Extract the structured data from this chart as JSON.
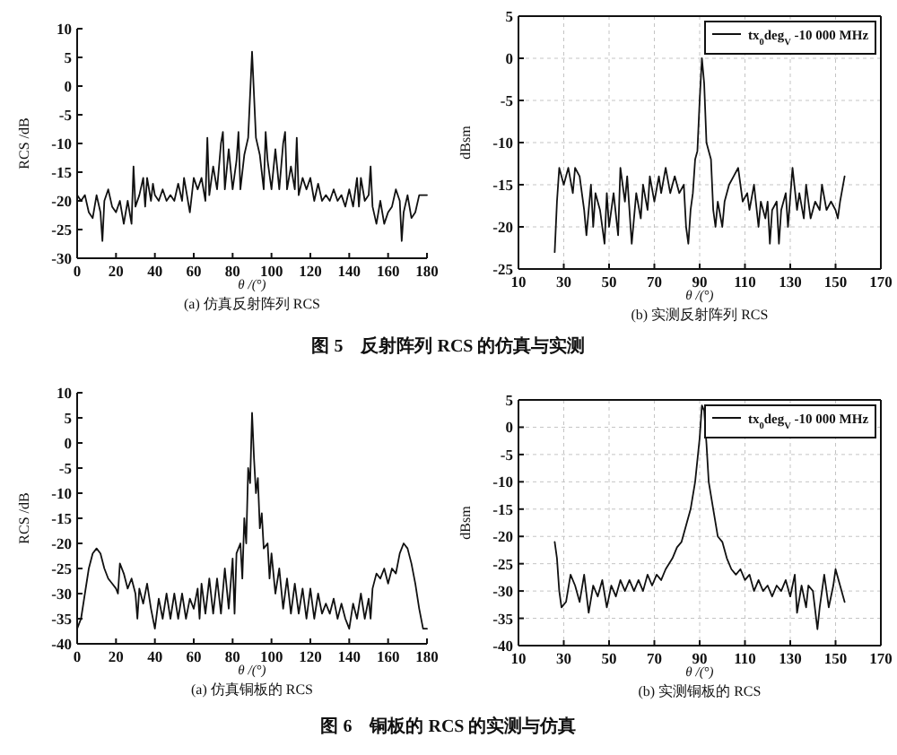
{
  "chart_data": [
    {
      "type": "line",
      "title": "(a) 仿真反射阵列 RCS",
      "xlabel": "θ /(°)",
      "ylabel": "RCS /dB",
      "xlim": [
        0,
        180
      ],
      "xticks": [
        0,
        20,
        40,
        60,
        80,
        100,
        120,
        140,
        160,
        180
      ],
      "ylim": [
        -30,
        10
      ],
      "yticks": [
        -30,
        -25,
        -20,
        -15,
        -10,
        -5,
        0,
        5,
        10
      ],
      "grid": false,
      "legend": false,
      "x": [
        0,
        2,
        4,
        6,
        8,
        10,
        12,
        13,
        14,
        16,
        18,
        20,
        22,
        24,
        26,
        28,
        29,
        30,
        32,
        34,
        35,
        36,
        38,
        39,
        40,
        42,
        44,
        46,
        48,
        50,
        52,
        54,
        55,
        56,
        58,
        60,
        62,
        64,
        66,
        67,
        68,
        70,
        72,
        74,
        75,
        76,
        78,
        80,
        82,
        83,
        84,
        86,
        88,
        90,
        92,
        94,
        96,
        97,
        98,
        100,
        102,
        104,
        106,
        107,
        108,
        110,
        112,
        113,
        114,
        116,
        118,
        120,
        122,
        124,
        126,
        128,
        130,
        132,
        134,
        136,
        138,
        140,
        142,
        144,
        145,
        146,
        148,
        150,
        151,
        152,
        154,
        156,
        158,
        160,
        162,
        164,
        166,
        167,
        168,
        170,
        172,
        174,
        176,
        178,
        180
      ],
      "series": [
        {
          "color": "#111111",
          "values": [
            -19,
            -20,
            -19,
            -22,
            -23,
            -19,
            -22,
            -27,
            -20,
            -18,
            -21,
            -22,
            -20,
            -24,
            -20,
            -24,
            -14,
            -21,
            -19,
            -16,
            -21,
            -16,
            -20,
            -17,
            -19,
            -20,
            -18,
            -20,
            -19,
            -20,
            -17,
            -20,
            -16,
            -18,
            -22,
            -16,
            -18,
            -16,
            -20,
            -9,
            -19,
            -14,
            -18,
            -10,
            -8,
            -18,
            -11,
            -18,
            -13,
            -8,
            -18,
            -12,
            -9,
            6,
            -9,
            -12,
            -18,
            -8,
            -13,
            -18,
            -11,
            -18,
            -10,
            -8,
            -18,
            -14,
            -18,
            -9,
            -19,
            -16,
            -18,
            -16,
            -20,
            -17,
            -20,
            -19,
            -20,
            -18,
            -20,
            -19,
            -21,
            -18,
            -21,
            -16,
            -21,
            -16,
            -20,
            -19,
            -14,
            -21,
            -24,
            -20,
            -24,
            -22,
            -21,
            -18,
            -20,
            -27,
            -22,
            -19,
            -23,
            -22,
            -19,
            -19,
            -19
          ]
        }
      ]
    },
    {
      "type": "line",
      "title": "(b) 实测反射阵列 RCS",
      "xlabel": "θ /(°)",
      "ylabel": "dBsm",
      "xlim": [
        10,
        170
      ],
      "xticks": [
        10,
        30,
        50,
        70,
        90,
        110,
        130,
        150,
        170
      ],
      "ylim": [
        -25,
        5
      ],
      "yticks": [
        -25,
        -20,
        -15,
        -10,
        -5,
        0,
        5
      ],
      "grid": true,
      "legend": "top right",
      "annotations": [
        "图 5　反射阵列 RCS 的仿真与实测"
      ],
      "x": [
        26,
        27,
        28,
        30,
        32,
        34,
        35,
        37,
        39,
        40,
        42,
        43,
        44,
        46,
        48,
        49,
        50,
        52,
        54,
        55,
        57,
        58,
        60,
        62,
        64,
        65,
        67,
        68,
        70,
        72,
        73,
        75,
        77,
        79,
        81,
        83,
        84,
        85,
        86,
        87,
        88,
        89,
        90,
        91,
        92,
        93,
        94,
        95,
        96,
        97,
        98,
        100,
        101,
        103,
        105,
        107,
        109,
        111,
        112,
        114,
        116,
        117,
        119,
        120,
        121,
        122,
        124,
        125,
        126,
        128,
        129,
        131,
        133,
        134,
        136,
        137,
        139,
        141,
        143,
        144,
        146,
        148,
        150,
        151,
        152,
        154
      ],
      "series": [
        {
          "name": "tx$_{0}$deg$_{V}$ -10 000 MHz",
          "color": "#111111",
          "values": [
            -23,
            -17,
            -13,
            -15,
            -13,
            -16,
            -13,
            -14,
            -18,
            -21,
            -15,
            -20,
            -16,
            -18,
            -22,
            -16,
            -20,
            -16,
            -21,
            -13,
            -17,
            -14,
            -22,
            -16,
            -19,
            -15,
            -18,
            -14,
            -17,
            -14,
            -16,
            -13,
            -16,
            -14,
            -16,
            -15,
            -20,
            -22,
            -18,
            -16,
            -12,
            -11,
            -5,
            0,
            -3,
            -10,
            -11,
            -12,
            -18,
            -20,
            -17,
            -20,
            -17,
            -15,
            -14,
            -13,
            -17,
            -16,
            -18,
            -15,
            -20,
            -17,
            -19,
            -17,
            -22,
            -18,
            -17,
            -22,
            -18,
            -16,
            -20,
            -13,
            -18,
            -16,
            -19,
            -15,
            -19,
            -17,
            -18,
            -15,
            -18,
            -17,
            -18,
            -19,
            -17,
            -14
          ]
        }
      ]
    },
    {
      "type": "line",
      "title": "(a) 仿真铜板的 RCS",
      "xlabel": "θ /(°)",
      "ylabel": "RCS /dB",
      "xlim": [
        0,
        180
      ],
      "xticks": [
        0,
        20,
        40,
        60,
        80,
        100,
        120,
        140,
        160,
        180
      ],
      "ylim": [
        -40,
        10
      ],
      "yticks": [
        -40,
        -35,
        -30,
        -25,
        -20,
        -15,
        -10,
        -5,
        0,
        5,
        10
      ],
      "grid": false,
      "legend": false,
      "x": [
        0,
        2,
        4,
        6,
        8,
        10,
        12,
        14,
        16,
        18,
        20,
        21,
        22,
        24,
        26,
        28,
        30,
        31,
        32,
        34,
        36,
        38,
        40,
        42,
        44,
        46,
        48,
        50,
        52,
        54,
        56,
        58,
        60,
        62,
        63,
        64,
        66,
        68,
        70,
        72,
        74,
        76,
        78,
        80,
        81,
        82,
        84,
        85,
        86,
        87,
        88,
        89,
        90,
        91,
        92,
        93,
        94,
        95,
        96,
        98,
        99,
        100,
        102,
        104,
        106,
        108,
        110,
        112,
        114,
        116,
        118,
        120,
        122,
        124,
        126,
        128,
        130,
        132,
        134,
        136,
        138,
        140,
        142,
        144,
        146,
        148,
        150,
        151,
        152,
        154,
        156,
        158,
        160,
        162,
        164,
        166,
        168,
        170,
        172,
        174,
        176,
        178,
        180
      ],
      "series": [
        {
          "color": "#111111",
          "values": [
            -37,
            -35,
            -30,
            -25,
            -22,
            -21,
            -22,
            -25,
            -27,
            -28,
            -29,
            -30,
            -24,
            -26,
            -29,
            -27,
            -30,
            -35,
            -29,
            -32,
            -28,
            -33,
            -37,
            -31,
            -35,
            -30,
            -35,
            -30,
            -35,
            -30,
            -35,
            -31,
            -33,
            -29,
            -35,
            -28,
            -34,
            -27,
            -34,
            -27,
            -34,
            -25,
            -33,
            -23,
            -34,
            -22,
            -20,
            -27,
            -15,
            -20,
            -5,
            -8,
            6,
            -3,
            -10,
            -7,
            -17,
            -14,
            -21,
            -20,
            -27,
            -22,
            -30,
            -25,
            -33,
            -27,
            -34,
            -28,
            -34,
            -29,
            -35,
            -29,
            -35,
            -30,
            -34,
            -32,
            -34,
            -31,
            -35,
            -32,
            -35,
            -37,
            -32,
            -35,
            -30,
            -35,
            -31,
            -35,
            -29,
            -26,
            -27,
            -25,
            -28,
            -25,
            -26,
            -22,
            -20,
            -21,
            -24,
            -28,
            -33,
            -37,
            -37
          ]
        }
      ]
    },
    {
      "type": "line",
      "title": "(b) 实测铜板的 RCS",
      "xlabel": "θ /(°)",
      "ylabel": "dBsm",
      "xlim": [
        10,
        170
      ],
      "xticks": [
        10,
        30,
        50,
        70,
        90,
        110,
        130,
        150,
        170
      ],
      "ylim": [
        -40,
        5
      ],
      "yticks": [
        -40,
        -35,
        -30,
        -25,
        -20,
        -15,
        -10,
        -5,
        0,
        5
      ],
      "grid": true,
      "legend": "top right",
      "annotations": [
        "图 6　铜板的 RCS 的实测与仿真"
      ],
      "x": [
        26,
        27,
        28,
        29,
        31,
        33,
        35,
        37,
        39,
        41,
        43,
        45,
        47,
        49,
        51,
        53,
        55,
        57,
        59,
        61,
        63,
        65,
        67,
        69,
        71,
        73,
        75,
        78,
        80,
        82,
        84,
        86,
        88,
        90,
        91,
        92,
        93,
        94,
        96,
        98,
        100,
        102,
        104,
        106,
        108,
        110,
        112,
        114,
        116,
        118,
        120,
        122,
        124,
        126,
        128,
        130,
        132,
        133,
        135,
        137,
        138,
        140,
        142,
        143,
        145,
        147,
        149,
        150,
        152,
        154
      ],
      "series": [
        {
          "name": "tx$_{0}$deg$_{V}$ -10 000 MHz",
          "color": "#111111",
          "values": [
            -21,
            -24,
            -30,
            -33,
            -32,
            -27,
            -29,
            -32,
            -27,
            -34,
            -29,
            -31,
            -28,
            -33,
            -29,
            -31,
            -28,
            -30,
            -28,
            -30,
            -28,
            -30,
            -27,
            -29,
            -27,
            -28,
            -26,
            -24,
            -22,
            -21,
            -18,
            -15,
            -10,
            -2,
            4,
            3,
            -3,
            -10,
            -15,
            -20,
            -21,
            -24,
            -26,
            -27,
            -26,
            -28,
            -27,
            -30,
            -28,
            -30,
            -29,
            -31,
            -29,
            -30,
            -28,
            -31,
            -27,
            -34,
            -29,
            -33,
            -29,
            -30,
            -37,
            -33,
            -27,
            -33,
            -29,
            -26,
            -29,
            -32
          ]
        }
      ]
    }
  ]
}
